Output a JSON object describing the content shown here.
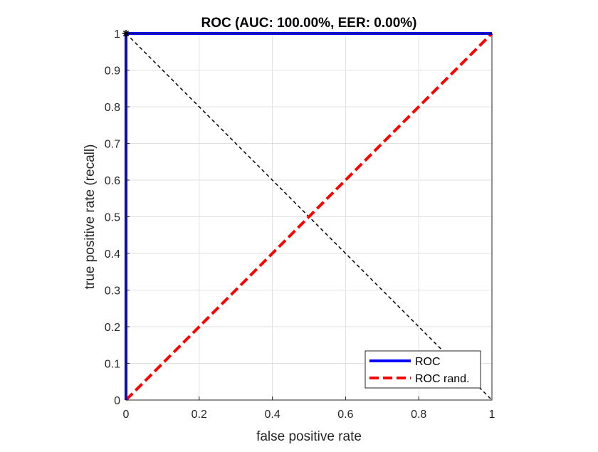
{
  "chart_data": {
    "type": "line",
    "title": "ROC (AUC: 100.00%, EER: 0.00%)",
    "xlabel": "false positive rate",
    "ylabel": "true positive rate (recall)",
    "xlim": [
      0,
      1
    ],
    "ylim": [
      0,
      1
    ],
    "x_ticks": [
      0,
      0.2,
      0.4,
      0.6,
      0.8,
      1
    ],
    "x_tick_labels": [
      "0",
      "0.2",
      "0.4",
      "0.6",
      "0.8",
      "1"
    ],
    "y_ticks": [
      0,
      0.1,
      0.2,
      0.3,
      0.4,
      0.5,
      0.6,
      0.7,
      0.8,
      0.9,
      1
    ],
    "y_tick_labels": [
      "0",
      "0.1",
      "0.2",
      "0.3",
      "0.4",
      "0.5",
      "0.6",
      "0.7",
      "0.8",
      "0.9",
      "1"
    ],
    "grid": true,
    "legend_position": "bottom-right",
    "series": [
      {
        "name": "ROC",
        "color": "#0000ff",
        "line_style": "solid",
        "x": [
          0,
          0,
          1
        ],
        "y": [
          0,
          1,
          1
        ]
      },
      {
        "name": "ROC rand.",
        "color": "#ff0000",
        "line_style": "dashed",
        "x": [
          0,
          1
        ],
        "y": [
          0,
          1
        ]
      }
    ],
    "reference_lines": [
      {
        "color": "#000000",
        "line_style": "dashed",
        "x": [
          0,
          1
        ],
        "y": [
          1,
          0
        ]
      }
    ],
    "markers": [
      {
        "x": 0,
        "y": 1,
        "symbol": "asterisk",
        "color": "#000000"
      }
    ]
  }
}
